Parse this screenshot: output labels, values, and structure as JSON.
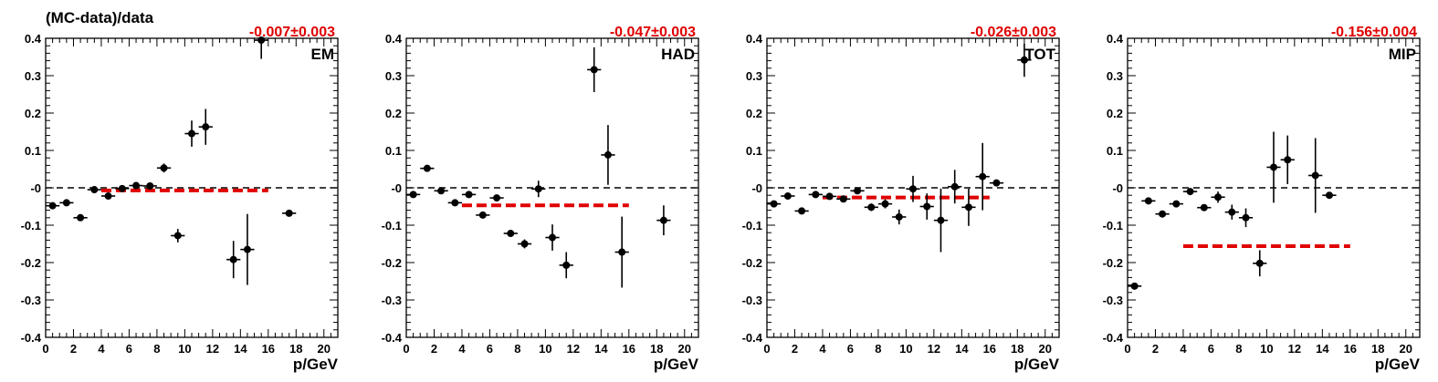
{
  "figure_title": "(MC-data)/data",
  "colors": {
    "points": "#000000",
    "mean_line": "#e00000",
    "fit_text": "#e00000",
    "zero_line": "#000000"
  },
  "chart_data": [
    {
      "type": "scatter",
      "panel_label": "EM",
      "fit_label": "-0.007±0.003",
      "xlabel": "p/GeV",
      "ylabel": "",
      "xlim": [
        0,
        21
      ],
      "ylim": [
        -0.4,
        0.4
      ],
      "x_ticks": [
        "0",
        "2",
        "4",
        "6",
        "8",
        "10",
        "12",
        "14",
        "16",
        "18",
        "20"
      ],
      "y_ticks": [
        "-0.4",
        "-0.3",
        "-0.2",
        "-0.1",
        "-0",
        "0.1",
        "0.2",
        "0.3",
        "0.4"
      ],
      "mean_value": -0.007,
      "mean_range": [
        4,
        16
      ],
      "points": [
        {
          "x": 0.5,
          "y": -0.048,
          "err": 0.005
        },
        {
          "x": 1.5,
          "y": -0.04,
          "err": 0.005
        },
        {
          "x": 2.5,
          "y": -0.08,
          "err": 0.006
        },
        {
          "x": 3.5,
          "y": -0.005,
          "err": 0.005
        },
        {
          "x": 4.5,
          "y": -0.022,
          "err": 0.008
        },
        {
          "x": 5.5,
          "y": -0.002,
          "err": 0.005
        },
        {
          "x": 6.5,
          "y": 0.006,
          "err": 0.006
        },
        {
          "x": 7.5,
          "y": 0.005,
          "err": 0.008
        },
        {
          "x": 8.5,
          "y": 0.053,
          "err": 0.012
        },
        {
          "x": 9.5,
          "y": -0.128,
          "err": 0.018
        },
        {
          "x": 10.5,
          "y": 0.145,
          "err": 0.035
        },
        {
          "x": 11.5,
          "y": 0.163,
          "err": 0.048
        },
        {
          "x": 13.5,
          "y": -0.192,
          "err": 0.05
        },
        {
          "x": 14.5,
          "y": -0.165,
          "err": 0.095
        },
        {
          "x": 15.5,
          "y": 0.395,
          "err": 0.05
        },
        {
          "x": 17.5,
          "y": -0.068,
          "err": 0.005
        }
      ]
    },
    {
      "type": "scatter",
      "panel_label": "HAD",
      "fit_label": "-0.047±0.003",
      "xlabel": "p/GeV",
      "ylabel": "",
      "xlim": [
        0,
        21
      ],
      "ylim": [
        -0.4,
        0.4
      ],
      "x_ticks": [
        "0",
        "2",
        "4",
        "6",
        "8",
        "10",
        "12",
        "14",
        "16",
        "18",
        "20"
      ],
      "y_ticks": [
        "-0.4",
        "-0.3",
        "-0.2",
        "-0.1",
        "-0",
        "0.1",
        "0.2",
        "0.3",
        "0.4"
      ],
      "mean_value": -0.047,
      "mean_range": [
        4,
        16
      ],
      "points": [
        {
          "x": 0.5,
          "y": -0.018,
          "err": 0.005
        },
        {
          "x": 1.5,
          "y": 0.052,
          "err": 0.006
        },
        {
          "x": 2.5,
          "y": -0.008,
          "err": 0.005
        },
        {
          "x": 3.5,
          "y": -0.04,
          "err": 0.006
        },
        {
          "x": 4.5,
          "y": -0.018,
          "err": 0.006
        },
        {
          "x": 5.5,
          "y": -0.073,
          "err": 0.008
        },
        {
          "x": 6.5,
          "y": -0.027,
          "err": 0.008
        },
        {
          "x": 7.5,
          "y": -0.122,
          "err": 0.008
        },
        {
          "x": 8.5,
          "y": -0.15,
          "err": 0.012
        },
        {
          "x": 9.5,
          "y": -0.003,
          "err": 0.022
        },
        {
          "x": 10.5,
          "y": -0.133,
          "err": 0.035
        },
        {
          "x": 11.5,
          "y": -0.207,
          "err": 0.035
        },
        {
          "x": 13.5,
          "y": 0.316,
          "err": 0.06
        },
        {
          "x": 14.5,
          "y": 0.088,
          "err": 0.08
        },
        {
          "x": 15.5,
          "y": -0.172,
          "err": 0.095
        },
        {
          "x": 18.5,
          "y": -0.087,
          "err": 0.04
        }
      ]
    },
    {
      "type": "scatter",
      "panel_label": "TOT",
      "fit_label": "-0.026±0.003",
      "xlabel": "p/GeV",
      "ylabel": "",
      "xlim": [
        0,
        21
      ],
      "ylim": [
        -0.4,
        0.4
      ],
      "x_ticks": [
        "0",
        "2",
        "4",
        "6",
        "8",
        "10",
        "12",
        "14",
        "16",
        "18",
        "20"
      ],
      "y_ticks": [
        "-0.4",
        "-0.3",
        "-0.2",
        "-0.1",
        "-0",
        "0.1",
        "0.2",
        "0.3",
        "0.4"
      ],
      "mean_value": -0.026,
      "mean_range": [
        4,
        16
      ],
      "points": [
        {
          "x": 0.5,
          "y": -0.043,
          "err": 0.005
        },
        {
          "x": 1.5,
          "y": -0.022,
          "err": 0.005
        },
        {
          "x": 2.5,
          "y": -0.062,
          "err": 0.005
        },
        {
          "x": 3.5,
          "y": -0.018,
          "err": 0.005
        },
        {
          "x": 4.5,
          "y": -0.023,
          "err": 0.006
        },
        {
          "x": 5.5,
          "y": -0.03,
          "err": 0.006
        },
        {
          "x": 6.5,
          "y": -0.008,
          "err": 0.006
        },
        {
          "x": 7.5,
          "y": -0.052,
          "err": 0.01
        },
        {
          "x": 8.5,
          "y": -0.043,
          "err": 0.012
        },
        {
          "x": 9.5,
          "y": -0.078,
          "err": 0.02
        },
        {
          "x": 10.5,
          "y": -0.003,
          "err": 0.035
        },
        {
          "x": 11.5,
          "y": -0.05,
          "err": 0.035
        },
        {
          "x": 12.5,
          "y": -0.087,
          "err": 0.085
        },
        {
          "x": 13.5,
          "y": 0.003,
          "err": 0.045
        },
        {
          "x": 14.5,
          "y": -0.052,
          "err": 0.05
        },
        {
          "x": 15.5,
          "y": 0.03,
          "err": 0.09
        },
        {
          "x": 16.5,
          "y": 0.013,
          "err": 0.006
        },
        {
          "x": 18.5,
          "y": 0.342,
          "err": 0.045
        }
      ]
    },
    {
      "type": "scatter",
      "panel_label": "MIP",
      "fit_label": "-0.156±0.004",
      "xlabel": "p/GeV",
      "ylabel": "",
      "xlim": [
        0,
        21
      ],
      "ylim": [
        -0.4,
        0.4
      ],
      "x_ticks": [
        "0",
        "2",
        "4",
        "6",
        "8",
        "10",
        "12",
        "14",
        "16",
        "18",
        "20"
      ],
      "y_ticks": [
        "-0.4",
        "-0.3",
        "-0.2",
        "-0.1",
        "-0",
        "0.1",
        "0.2",
        "0.3",
        "0.4"
      ],
      "mean_value": -0.156,
      "mean_range": [
        4,
        16
      ],
      "points": [
        {
          "x": 0.5,
          "y": -0.263,
          "err": 0.005
        },
        {
          "x": 1.5,
          "y": -0.035,
          "err": 0.005
        },
        {
          "x": 2.5,
          "y": -0.07,
          "err": 0.005
        },
        {
          "x": 3.5,
          "y": -0.043,
          "err": 0.005
        },
        {
          "x": 4.5,
          "y": -0.01,
          "err": 0.006
        },
        {
          "x": 5.5,
          "y": -0.053,
          "err": 0.008
        },
        {
          "x": 6.5,
          "y": -0.025,
          "err": 0.015
        },
        {
          "x": 7.5,
          "y": -0.065,
          "err": 0.02
        },
        {
          "x": 8.5,
          "y": -0.08,
          "err": 0.025
        },
        {
          "x": 9.5,
          "y": -0.202,
          "err": 0.035
        },
        {
          "x": 10.5,
          "y": 0.055,
          "err": 0.095
        },
        {
          "x": 11.5,
          "y": 0.075,
          "err": 0.065
        },
        {
          "x": 13.5,
          "y": 0.033,
          "err": 0.1
        },
        {
          "x": 14.5,
          "y": -0.02,
          "err": 0.006
        }
      ]
    }
  ]
}
